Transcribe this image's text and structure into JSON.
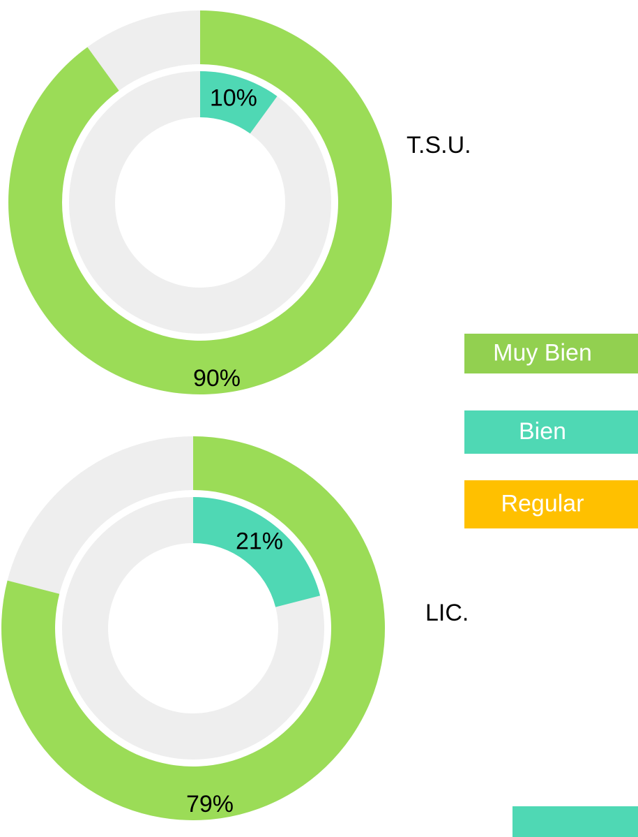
{
  "chart_data": [
    {
      "type": "donut",
      "title": "T.S.U.",
      "track_color": "#eeeeee",
      "series": [
        {
          "color": "#9bdc57",
          "values": [
            90
          ],
          "value_labels": [
            "90%"
          ]
        },
        {
          "color": "#4fd8b4",
          "values": [
            10
          ],
          "value_labels": [
            "10%"
          ]
        }
      ]
    },
    {
      "type": "donut",
      "title": "LIC.",
      "track_color": "#eeeeee",
      "series": [
        {
          "color": "#9bdc57",
          "values": [
            79
          ],
          "value_labels": [
            "79%"
          ]
        },
        {
          "color": "#4fd8b4",
          "values": [
            21
          ],
          "value_labels": [
            "21%"
          ]
        }
      ]
    }
  ],
  "legend": [
    {
      "name": "Muy Bien",
      "color": "#92d050"
    },
    {
      "name": "Bien",
      "color": "#4fd8b4"
    },
    {
      "name": "Regular",
      "color": "#ffc000"
    }
  ]
}
